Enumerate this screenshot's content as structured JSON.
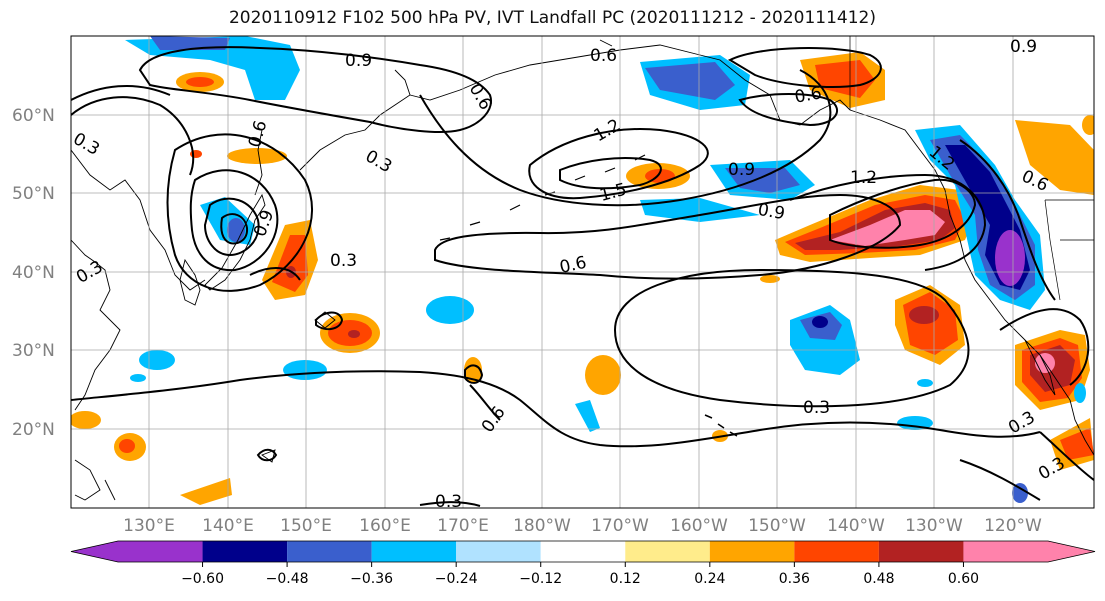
{
  "title": "2020110912 F102 500 hPa PV, IVT Landfall PC (2020111212 - 2020111412)",
  "lat_labels": [
    "60°N",
    "50°N",
    "40°N",
    "30°N",
    "20°N"
  ],
  "lon_labels": [
    "130°E",
    "140°E",
    "150°E",
    "160°E",
    "170°E",
    "180°W",
    "170°W",
    "160°W",
    "150°W",
    "140°W",
    "130°W",
    "120°W"
  ],
  "contour_labels": [
    "0.9",
    "0.6",
    "0.6",
    "0.3",
    "0.3",
    "0.6",
    "1.2",
    "1.5",
    "0.9",
    "0.9",
    "0.6",
    "1.2",
    "0.6",
    "0.3",
    "0.6",
    "0.3",
    "0.3",
    "0.3",
    "0.9",
    "0.6",
    "0.3",
    "0.3",
    "0.9",
    "1.2"
  ],
  "colorbar": {
    "colors": [
      "#9932cc",
      "#00008b",
      "#3a5fcd",
      "#00bfff",
      "#b0e2ff",
      "#ffffff",
      "#ffec8b",
      "#ffa500",
      "#ff4500",
      "#b22222",
      "#ff82ab"
    ],
    "tick_labels": [
      "−0.60",
      "−0.48",
      "−0.36",
      "−0.24",
      "−0.12",
      "0.12",
      "0.24",
      "0.36",
      "0.48",
      "0.60"
    ]
  }
}
